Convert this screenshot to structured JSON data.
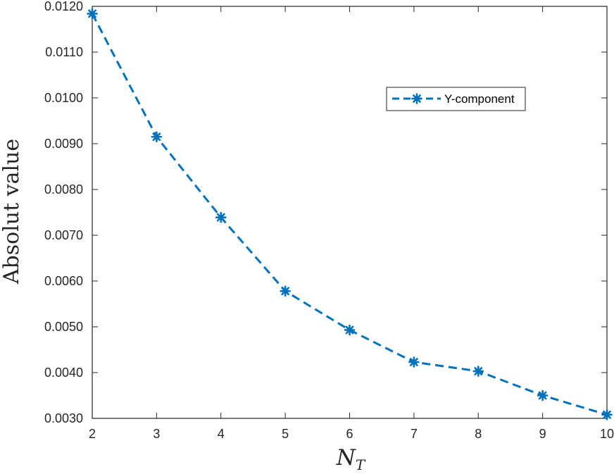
{
  "chart_data": {
    "type": "line",
    "x": [
      2,
      3,
      4,
      5,
      6,
      7,
      8,
      9,
      10
    ],
    "series": [
      {
        "name": "Y-component",
        "values": [
          0.01184,
          0.00915,
          0.00739,
          0.00578,
          0.00493,
          0.00423,
          0.00403,
          0.0035,
          0.00308
        ],
        "color": "#0072BD",
        "line_style": "dashed",
        "marker": "asterisk"
      }
    ],
    "xlabel": {
      "main": "N",
      "subscript": "T"
    },
    "ylabel": "Absolut value",
    "xlim": [
      2,
      10
    ],
    "ylim": [
      0.003,
      0.012
    ],
    "x_ticks": [
      "2",
      "3",
      "4",
      "5",
      "6",
      "7",
      "8",
      "9",
      "10"
    ],
    "y_ticks": [
      0.003,
      0.004,
      0.005,
      0.006,
      0.007,
      0.008,
      0.009,
      0.01,
      0.011,
      0.012
    ],
    "y_tick_labels": [
      "0.0030",
      "0.0040",
      "0.0050",
      "0.0060",
      "0.0070",
      "0.0080",
      "0.0090",
      "0.0100",
      "0.0110",
      "0.0120"
    ],
    "grid": false,
    "legend_position": "top-right"
  }
}
